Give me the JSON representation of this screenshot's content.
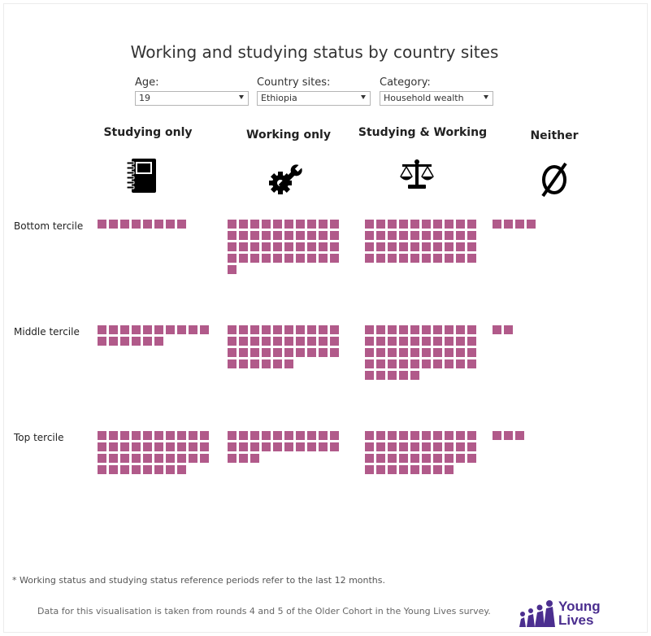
{
  "title": "Working and studying status by country sites",
  "filters": [
    {
      "label": "Age:",
      "value": "19"
    },
    {
      "label": "Country sites:",
      "value": "Ethiopia"
    },
    {
      "label": "Category:",
      "value": "Household wealth"
    }
  ],
  "columns": [
    {
      "label": "Studying only",
      "icon": "notebook-icon"
    },
    {
      "label": "Working only",
      "icon": "gear-wrench-icon"
    },
    {
      "label": "Studying & Working",
      "icon": "scales-icon"
    },
    {
      "label": "Neither",
      "icon": "empty-set-icon"
    }
  ],
  "rows": [
    "Bottom tercile",
    "Middle tercile",
    "Top tercile"
  ],
  "chart_data": {
    "type": "waffle",
    "title": "Working and studying status by country sites",
    "categories": [
      "Studying only",
      "Working only",
      "Studying & Working",
      "Neither"
    ],
    "series": [
      {
        "name": "Bottom tercile",
        "values": [
          8,
          41,
          40,
          4
        ]
      },
      {
        "name": "Middle tercile",
        "values": [
          16,
          36,
          45,
          2
        ]
      },
      {
        "name": "Top tercile",
        "values": [
          38,
          23,
          38,
          3
        ]
      }
    ],
    "squares_per_row": 10,
    "color": "#b15a8a"
  },
  "footnote": "* Working status and studying status reference periods refer to the last 12 months.",
  "source": "Data for this visualisation is taken from rounds 4 and 5 of the Older Cohort in the Young Lives survey.",
  "logo": {
    "line1": "Young",
    "line2": "Lives",
    "color": "#4b2e8f"
  }
}
